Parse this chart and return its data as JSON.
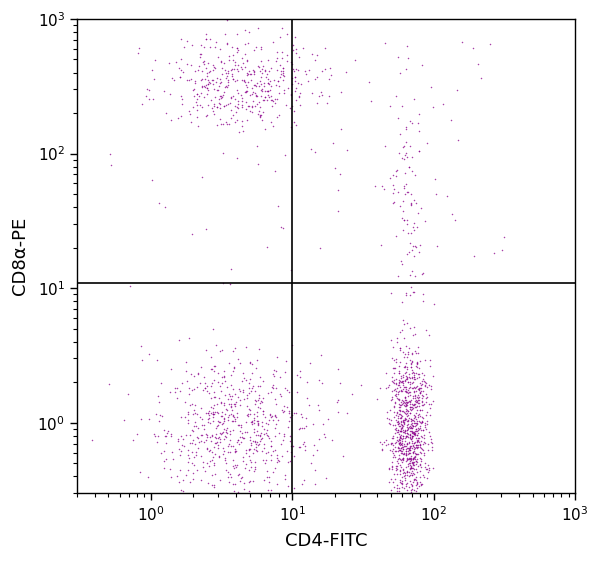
{
  "title": "",
  "xlabel": "CD4-FITC",
  "ylabel": "CD8α-PE",
  "xlim": [
    0.3,
    1000
  ],
  "ylim": [
    0.3,
    1000
  ],
  "dot_color": "#8B008B",
  "dot_size": 1.2,
  "dot_alpha": 0.75,
  "gate_x": 10,
  "gate_y": 11,
  "background_color": "#ffffff",
  "clusters": [
    {
      "name": "CD8_high_CD4_low",
      "x_log_center": 0.65,
      "y_log_center": 2.52,
      "x_log_spread": 0.28,
      "y_log_spread": 0.18,
      "n_points": 450
    },
    {
      "name": "CD8_low_CD4_low",
      "x_log_center": 0.6,
      "y_log_center": -0.05,
      "x_log_spread": 0.3,
      "y_log_spread": 0.28,
      "n_points": 700
    },
    {
      "name": "CD8_low_CD4_high_tight",
      "x_log_center": 1.82,
      "y_log_center": -0.05,
      "x_log_spread": 0.07,
      "y_log_spread": 0.3,
      "n_points": 900
    },
    {
      "name": "CD8_high_CD4_high_stripe",
      "x_log_center": 1.82,
      "y_log_center": 1.5,
      "x_log_spread": 0.07,
      "y_log_spread": 0.55,
      "n_points": 120
    }
  ],
  "sparse_ur": {
    "x_log_min": 1.1,
    "x_log_max": 2.5,
    "y_log_min": 1.2,
    "y_log_max": 2.85,
    "n_points": 40
  },
  "sparse_mid_left": {
    "x_log_min": -0.3,
    "x_log_max": 1.0,
    "y_log_min": 1.0,
    "y_log_max": 2.0,
    "n_points": 20
  }
}
